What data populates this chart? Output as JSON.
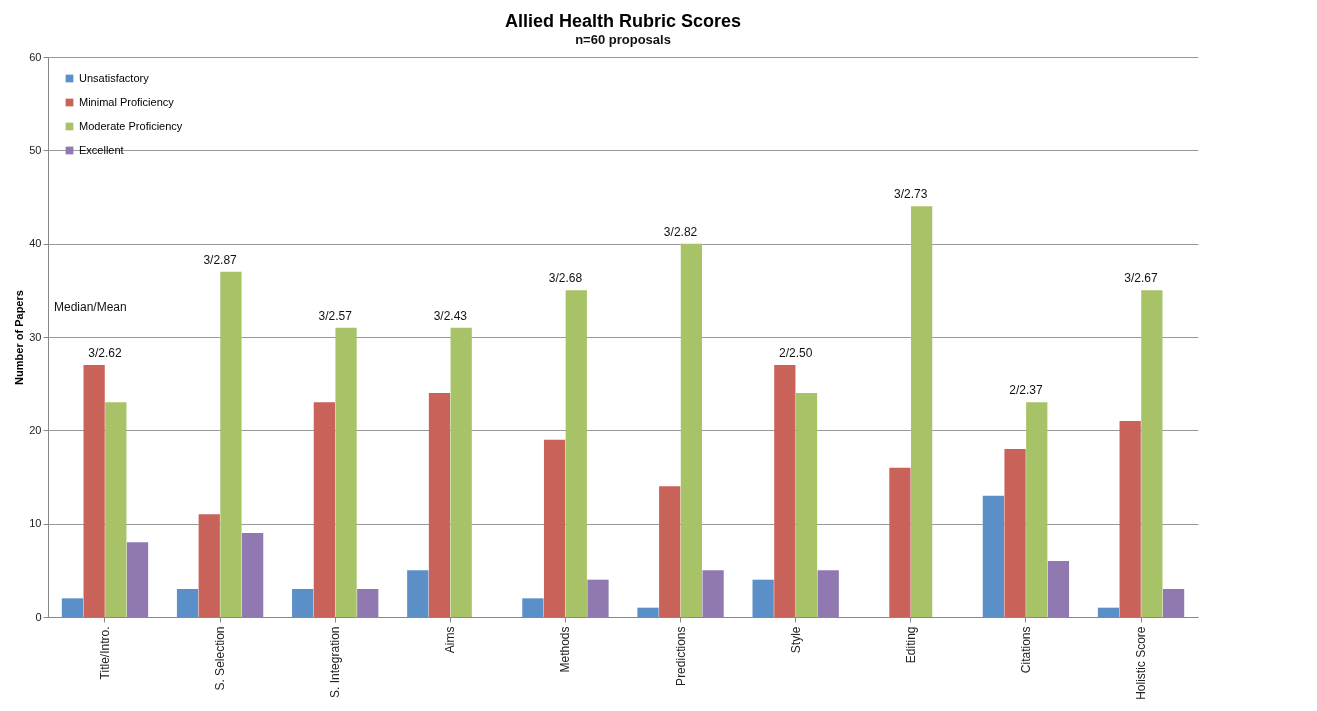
{
  "chart_data": {
    "type": "bar",
    "title": "Allied Health Rubric Scores",
    "subtitle": "n=60 proposals",
    "ylabel": "Number of Papers",
    "categories": [
      "Title/Intro.",
      "S. Selection",
      "S. Integration",
      "Aims",
      "Methods",
      "Predictions",
      "Style",
      "Editing",
      "Citations",
      "Holistic Score"
    ],
    "series": [
      {
        "name": "Unsatisfactory",
        "color": "#5b8fc7",
        "values": [
          2,
          3,
          3,
          5,
          2,
          1,
          4,
          0,
          13,
          1
        ]
      },
      {
        "name": "Minimal Proficiency",
        "color": "#c9635a",
        "values": [
          27,
          11,
          23,
          24,
          19,
          14,
          27,
          16,
          18,
          21
        ]
      },
      {
        "name": "Moderate Proficiency",
        "color": "#a8c267",
        "values": [
          23,
          37,
          31,
          31,
          35,
          40,
          24,
          44,
          23,
          35
        ]
      },
      {
        "name": "Excellent",
        "color": "#8f79b0",
        "values": [
          8,
          9,
          3,
          0,
          4,
          5,
          5,
          0,
          6,
          3
        ]
      }
    ],
    "ylim": [
      0,
      60
    ],
    "yticks": [
      0,
      10,
      20,
      30,
      40,
      50,
      60
    ],
    "grid": "y",
    "legend": "top left",
    "annotations": [
      "Median/Mean",
      {
        "text": "3/2.62",
        "x": "Title/Intro.",
        "y": 27
      },
      {
        "text": "3/2.87",
        "x": "S. Selection",
        "y": 37
      },
      {
        "text": "3/2.57",
        "x": "S. Integration",
        "y": 31
      },
      {
        "text": "3/2.43",
        "x": "Aims",
        "y": 31
      },
      {
        "text": "3/2.68",
        "x": "Methods",
        "y": 35
      },
      {
        "text": "3/2.82",
        "x": "Predictions",
        "y": 40
      },
      {
        "text": "2/2.50",
        "x": "Style",
        "y": 27
      },
      {
        "text": "3/2.73",
        "x": "Editing",
        "y": 44
      },
      {
        "text": "2/2.37",
        "x": "Citations",
        "y": 23
      },
      {
        "text": "3/2.67",
        "x": "Holistic Score",
        "y": 35
      }
    ]
  }
}
